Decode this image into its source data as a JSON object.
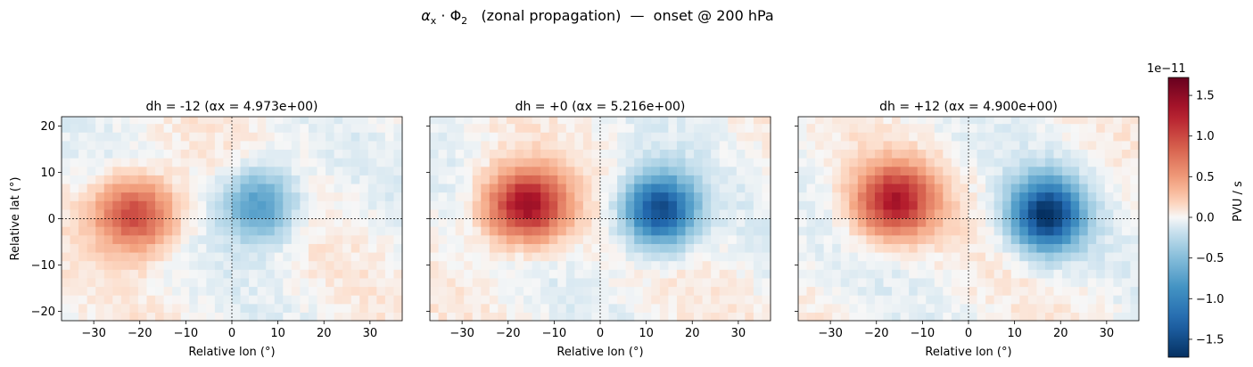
{
  "figure": {
    "title": "αx · Φ2  (zonal propagation)  —  onset @ 200 hPa"
  },
  "colorbar": {
    "label": "PVU / s",
    "offset_text": "1e−11",
    "ticks": [
      "1.5",
      "1.0",
      "0.5",
      "0.0",
      "−0.5",
      "−1.0",
      "−1.5"
    ],
    "tick_values": [
      1.5,
      1.0,
      0.5,
      0.0,
      -0.5,
      -1.0,
      -1.5
    ],
    "range": [
      -1.72,
      1.72
    ],
    "colormap": "RdBu_r"
  },
  "chart_data": [
    {
      "type": "heatmap",
      "title": "dh = -12   (αx = 4.973e+00)",
      "xlabel": "Relative lon (°)",
      "ylabel": "Relative lat (°)",
      "xlim": [
        -37,
        37
      ],
      "ylim": [
        -22,
        22
      ],
      "xticks": [
        -30,
        -20,
        -10,
        0,
        10,
        20,
        30
      ],
      "yticks": [
        20,
        10,
        0,
        -10,
        -20
      ],
      "units_scale": "1e-11 PVU/s",
      "features": [
        {
          "name": "positive anomaly",
          "lon": -21,
          "lat": 1,
          "peak": 1.05
        },
        {
          "name": "negative anomaly",
          "lon": 6,
          "lat": 3,
          "peak": -0.85
        }
      ],
      "reference_lines": {
        "lon": 0,
        "lat": 0
      }
    },
    {
      "type": "heatmap",
      "title": "dh = +0   (αx = 5.216e+00)",
      "xlabel": "Relative lon (°)",
      "ylabel": "",
      "xlim": [
        -37,
        37
      ],
      "ylim": [
        -22,
        22
      ],
      "xticks": [
        -30,
        -20,
        -10,
        0,
        10,
        20,
        30
      ],
      "yticks": [
        20,
        10,
        0,
        -10,
        -20
      ],
      "units_scale": "1e-11 PVU/s",
      "features": [
        {
          "name": "positive anomaly",
          "lon": -16,
          "lat": 3,
          "peak": 1.45
        },
        {
          "name": "negative anomaly",
          "lon": 13,
          "lat": 2,
          "peak": -1.55
        }
      ],
      "reference_lines": {
        "lon": 0,
        "lat": 0
      }
    },
    {
      "type": "heatmap",
      "title": "dh = +12   (αx = 4.900e+00)",
      "xlabel": "Relative lon (°)",
      "ylabel": "",
      "xlim": [
        -37,
        37
      ],
      "ylim": [
        -22,
        22
      ],
      "xticks": [
        -30,
        -20,
        -10,
        0,
        10,
        20,
        30
      ],
      "yticks": [
        20,
        10,
        0,
        -10,
        -20
      ],
      "units_scale": "1e-11 PVU/s",
      "features": [
        {
          "name": "positive anomaly",
          "lon": -16,
          "lat": 4,
          "peak": 1.3
        },
        {
          "name": "negative anomaly",
          "lon": 17,
          "lat": 1,
          "peak": -1.7
        }
      ],
      "reference_lines": {
        "lon": 0,
        "lat": 0
      }
    }
  ]
}
